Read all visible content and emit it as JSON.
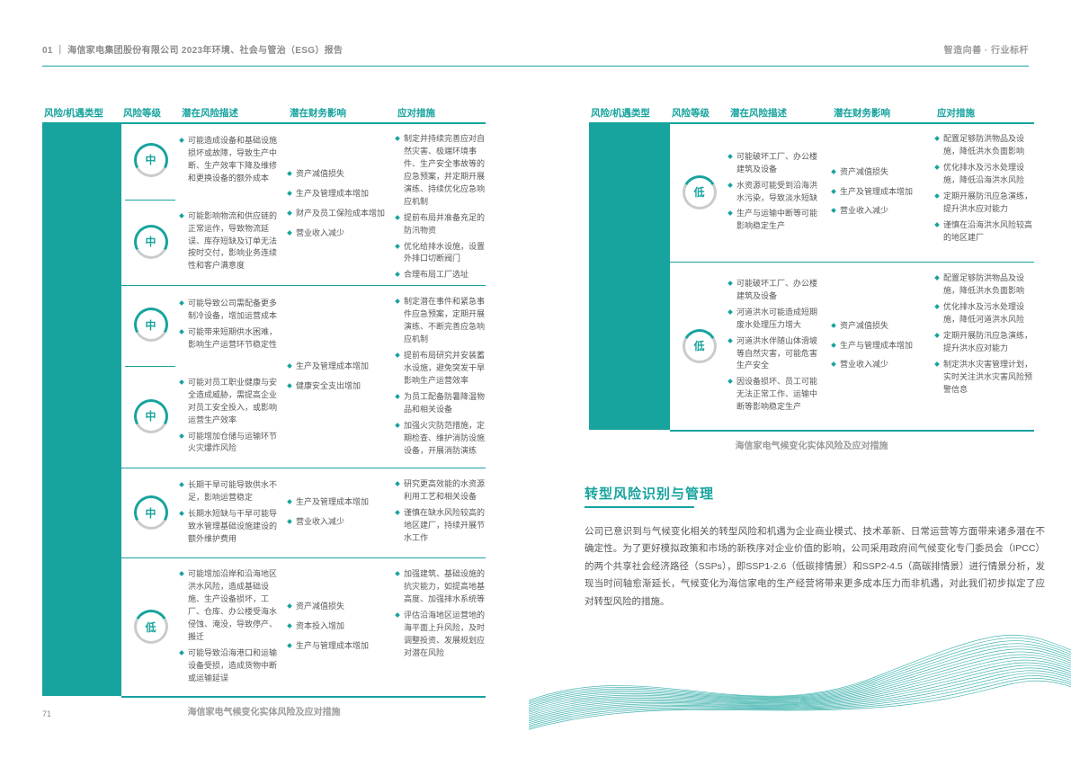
{
  "page": {
    "header_left": "01 ｜ 海信家电集团股份有限公司 2023年环境、社会与管治（ESG）报告",
    "header_right": "智造向善 · 行业标杆",
    "page_number": "71"
  },
  "colors": {
    "accent": "#17a39e",
    "body_text": "#57585a",
    "ring_gray": "#c9cbcc",
    "caption_gray": "#9b9c9e"
  },
  "columns": [
    "风险/机遇类型",
    "风险等级",
    "潜在风险描述",
    "潜在财务影响",
    "应对措施"
  ],
  "risk_levels": {
    "中": 0.66,
    "低": 0.33
  },
  "left_table": {
    "caption": "海信家电气候变化实体风险及应对措施",
    "groups": [
      {
        "rows": [
          {
            "level": "中",
            "descriptions": [
              "可能造成设备和基础设施损坏或故障，导致生产中断、生产效率下降及维修和更换设备的额外成本"
            ]
          },
          {
            "level": "中",
            "descriptions": [
              "可能影响物流和供应链的正常运作，导致物流延误、库存短缺及订单无法按时交付，影响业务连续性和客户满意度"
            ]
          }
        ],
        "impacts": [
          "资产减值损失",
          "生产及管理成本增加",
          "财产及员工保险成本增加",
          "营业收入减少"
        ],
        "measures": [
          "制定并持续完善应对自然灾害、极端环境事件、生产安全事故等的应急预案，并定期开展演练、持续优化应急响应机制",
          "提前布局并准备充足的防汛物资",
          "优化给排水设施，设置外排口切断阀门",
          "合理布局工厂选址"
        ]
      },
      {
        "rows": [
          {
            "level": "中",
            "descriptions": [
              "可能导致公司需配备更多制冷设备，增加运营成本",
              "可能带来短期供水困难，影响生产运营环节稳定性"
            ]
          },
          {
            "level": "中",
            "descriptions": [
              "可能对员工职业健康与安全造成威胁，需提高企业对员工安全投入，或影响运营生产效率",
              "可能增加仓储与运输环节火灾爆炸风险"
            ]
          }
        ],
        "impacts": [
          "生产及管理成本增加",
          "健康安全支出增加"
        ],
        "measures": [
          "制定潜在事件和紧急事件应急预案，定期开展演练、不断完善应急响应机制",
          "提前布局研究并安装蓄水设施，避免突发干旱影响生产运营效率",
          "为员工配备防暑降温物品和相关设备",
          "加强火灾防范措施，定期检查、维护消防设施设备，开展消防演练"
        ]
      },
      {
        "rows": [
          {
            "level": "中",
            "descriptions": [
              "长期干旱可能导致供水不足，影响运营稳定",
              "长期水短缺与干旱可能导致水管理基础设施建设的额外维护费用"
            ]
          }
        ],
        "impacts": [
          "生产及管理成本增加",
          "营业收入减少"
        ],
        "measures": [
          "研究更高效能的水资源利用工艺和相关设备",
          "谨慎在缺水风险较高的地区建厂，持续开展节水工作"
        ]
      },
      {
        "rows": [
          {
            "level": "低",
            "descriptions": [
              "可能增加沿岸和沿海地区洪水风险，造成基础设施、生产设备损坏，工厂、仓库、办公楼受海水侵蚀、淹没，导致停产、搬迁",
              "可能导致沿海港口和运输设备受损，造成货物中断或运输延误"
            ]
          }
        ],
        "impacts": [
          "资产减值损失",
          "资本投入增加",
          "生产与管理成本增加"
        ],
        "measures": [
          "加强建筑、基础设施的抗灾能力，如提高地基高度、加强排水系统等",
          "评估沿海地区运营地的海平面上升风险，及时调整投资、发展规划应对潜在风险"
        ]
      }
    ]
  },
  "right_table": {
    "caption": "海信家电气候变化实体风险及应对措施",
    "groups": [
      {
        "rows": [
          {
            "level": "低",
            "descriptions": [
              "可能破坏工厂、办公楼建筑及设备",
              "水资源可能受到沿海洪水污染，导致淡水短缺",
              "生产与运输中断等可能影响稳定生产"
            ]
          }
        ],
        "impacts": [
          "资产减值损失",
          "生产及管理成本增加",
          "营业收入减少"
        ],
        "measures": [
          "配置足够防洪物品及设施，降低洪水负面影响",
          "优化排水及污水处理设施，降低沿海洪水风险",
          "定期开展防汛应急演练，提升洪水应对能力",
          "谨慎在沿海洪水风险较高的地区建厂"
        ]
      },
      {
        "rows": [
          {
            "level": "低",
            "descriptions": [
              "可能破坏工厂、办公楼建筑及设备",
              "河道洪水可能造成短期废水处理压力增大",
              "河道洪水伴随山体滑坡等自然灾害，可能危害生产安全",
              "因设备损坏、员工可能无法正常工作、运输中断等影响稳定生产"
            ]
          }
        ],
        "impacts": [
          "资产减值损失",
          "生产与管理成本增加",
          "营业收入减少"
        ],
        "measures": [
          "配置足够防洪物品及设施，降低洪水负面影响",
          "优化排水及污水处理设施，降低河道洪水风险",
          "定期开展防汛应急演练，提升洪水应对能力",
          "制定洪水灾害管理计划，实时关注洪水灾害风险预警信息"
        ]
      }
    ]
  },
  "transition_section": {
    "title": "转型风险识别与管理",
    "paragraph": "公司已意识到与气候变化相关的转型风险和机遇为企业商业模式、技术革新、日常运营等方面带来诸多潜在不确定性。为了更好模拟政策和市场的新秩序对企业价值的影响，公司采用政府间气候变化专门委员会（IPCC）的两个共享社会经济路径（SSPs），即SSP1-2.6（低碳排情景）和SSP2-4.5（高碳排情景）进行情景分析，发现当时间轴愈渐延长，气候变化为海信家电的生产经营将带来更多成本压力而非机遇，对此我们初步拟定了应对转型风险的措施。"
  }
}
